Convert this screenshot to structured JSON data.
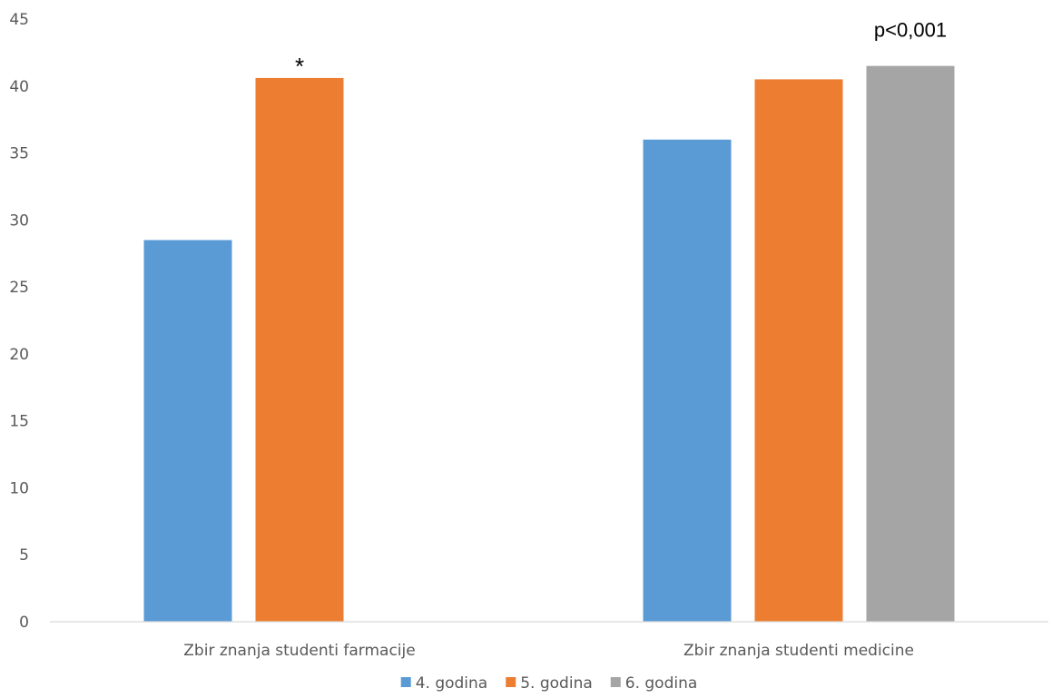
{
  "chart_data": {
    "type": "bar",
    "categories": [
      "Zbir znanja studenti farmacije",
      "Zbir znanja studenti medicine"
    ],
    "series": [
      {
        "name": "4. godina",
        "color": "#5B9BD5",
        "values": [
          28.5,
          36.0
        ]
      },
      {
        "name": "5. godina",
        "color": "#ED7D31",
        "values": [
          40.6,
          40.5
        ]
      },
      {
        "name": "6. godina",
        "color": "#A5A5A5",
        "values": [
          null,
          41.5
        ]
      }
    ],
    "ylim": [
      0,
      45
    ],
    "yticks": [
      0,
      5,
      10,
      15,
      20,
      25,
      30,
      35,
      40,
      45
    ],
    "grid": false,
    "legend_position": "bottom",
    "annotations": [
      {
        "text": "*",
        "category_index": 0,
        "series_index": 1
      },
      {
        "text": "p<0,001",
        "category_index": 1,
        "series_index": 2
      }
    ]
  }
}
